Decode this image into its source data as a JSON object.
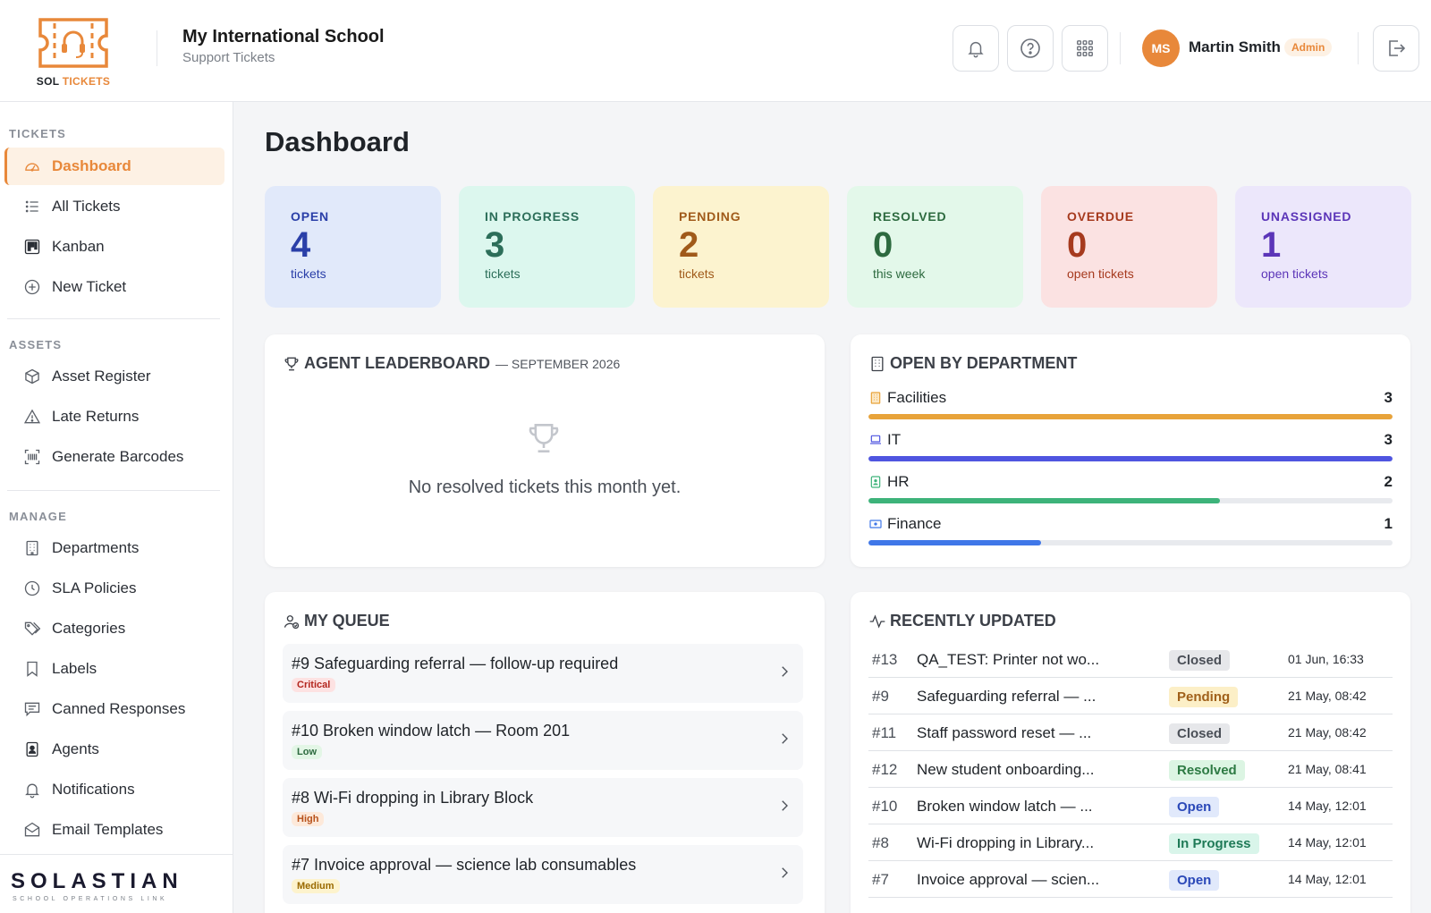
{
  "header": {
    "logo_brand": "SOL",
    "logo_accent": "TICKETS",
    "school_name": "My International School",
    "school_sub": "Support Tickets",
    "user_initials": "MS",
    "user_name": "Martin Smith",
    "user_role": "Admin",
    "icons": [
      "bell-icon",
      "help-icon",
      "apps-grid-icon",
      "logout-icon"
    ]
  },
  "sidebar": {
    "sections": [
      {
        "label": "TICKETS",
        "items": [
          {
            "label": "Dashboard",
            "icon": "gauge-icon",
            "active": true
          },
          {
            "label": "All Tickets",
            "icon": "list-icon"
          },
          {
            "label": "Kanban",
            "icon": "kanban-icon"
          },
          {
            "label": "New Ticket",
            "icon": "plus-circle-icon"
          }
        ]
      },
      {
        "label": "ASSETS",
        "items": [
          {
            "label": "Asset Register",
            "icon": "box-icon"
          },
          {
            "label": "Late Returns",
            "icon": "warning-icon"
          },
          {
            "label": "Generate Barcodes",
            "icon": "barcode-icon"
          }
        ]
      },
      {
        "label": "MANAGE",
        "items": [
          {
            "label": "Departments",
            "icon": "building-icon"
          },
          {
            "label": "SLA Policies",
            "icon": "clock-icon"
          },
          {
            "label": "Categories",
            "icon": "tags-icon"
          },
          {
            "label": "Labels",
            "icon": "bookmark-icon"
          },
          {
            "label": "Canned Responses",
            "icon": "chat-icon"
          },
          {
            "label": "Agents",
            "icon": "badge-icon"
          },
          {
            "label": "Notifications",
            "icon": "bell-icon"
          },
          {
            "label": "Email Templates",
            "icon": "envelope-icon"
          }
        ]
      }
    ],
    "footer_brand": "SOLASTIAN",
    "footer_sub": "SCHOOL OPERATIONS LINK"
  },
  "main": {
    "title": "Dashboard",
    "stats": [
      {
        "label": "OPEN",
        "value": "4",
        "sub": "tickets",
        "bg": "#e1e9fa",
        "color": "#2a3fa8"
      },
      {
        "label": "IN PROGRESS",
        "value": "3",
        "sub": "tickets",
        "bg": "#dcf7ee",
        "color": "#2c6e59"
      },
      {
        "label": "PENDING",
        "value": "2",
        "sub": "tickets",
        "bg": "#fcf3cf",
        "color": "#a05a1a"
      },
      {
        "label": "RESOLVED",
        "value": "0",
        "sub": "this week",
        "bg": "#e3f8ea",
        "color": "#2d6a3f"
      },
      {
        "label": "OVERDUE",
        "value": "0",
        "sub": "open tickets",
        "bg": "#fbe2e2",
        "color": "#a63a1e"
      },
      {
        "label": "UNASSIGNED",
        "value": "1",
        "sub": "open tickets",
        "bg": "#ece7fb",
        "color": "#5b35b8"
      }
    ],
    "leaderboard": {
      "title": "AGENT LEADERBOARD",
      "period": "— SEPTEMBER 2026",
      "empty": "No resolved tickets this month yet."
    },
    "departments": {
      "title": "OPEN BY DEPARTMENT",
      "items": [
        {
          "name": "Facilities",
          "count": 3,
          "fraction": 1.0,
          "color": "#e8a33a",
          "icon": "building-icon"
        },
        {
          "name": "IT",
          "count": 3,
          "fraction": 1.0,
          "color": "#4f55e0",
          "icon": "laptop-icon"
        },
        {
          "name": "HR",
          "count": 2,
          "fraction": 0.67,
          "color": "#3db37a",
          "icon": "id-badge-icon"
        },
        {
          "name": "Finance",
          "count": 1,
          "fraction": 0.33,
          "color": "#3f77e8",
          "icon": "cash-icon"
        }
      ]
    },
    "queue": {
      "title": "MY QUEUE",
      "items": [
        {
          "title": "#9 Safeguarding referral — follow-up required",
          "priority": "Critical",
          "pbg": "#fde2e2",
          "pcolor": "#b3261e"
        },
        {
          "title": "#10 Broken window latch — Room 201",
          "priority": "Low",
          "pbg": "#e3f6e6",
          "pcolor": "#2d6a3f"
        },
        {
          "title": "#8 Wi-Fi dropping in Library Block",
          "priority": "High",
          "pbg": "#fde9da",
          "pcolor": "#b8521b"
        },
        {
          "title": "#7 Invoice approval — science lab consumables",
          "priority": "Medium",
          "pbg": "#fdf3cd",
          "pcolor": "#9a6a00"
        }
      ]
    },
    "recent": {
      "title": "RECENTLY UPDATED",
      "rows": [
        {
          "num": "#13",
          "title": "QA_TEST: Printer not wo...",
          "status": "Closed",
          "bg": "#e6e7ea",
          "color": "#4a4f57",
          "date": "01 Jun, 16:33"
        },
        {
          "num": "#9",
          "title": "Safeguarding referral — ...",
          "status": "Pending",
          "bg": "#fcefc7",
          "color": "#a0601a",
          "date": "21 May, 08:42"
        },
        {
          "num": "#11",
          "title": "Staff password reset — ...",
          "status": "Closed",
          "bg": "#e6e7ea",
          "color": "#4a4f57",
          "date": "21 May, 08:42"
        },
        {
          "num": "#12",
          "title": "New student onboarding...",
          "status": "Resolved",
          "bg": "#dcf5e3",
          "color": "#2d7a43",
          "date": "21 May, 08:41"
        },
        {
          "num": "#10",
          "title": "Broken window latch — ...",
          "status": "Open",
          "bg": "#e1e9fb",
          "color": "#2a48b8",
          "date": "14 May, 12:01"
        },
        {
          "num": "#8",
          "title": "Wi-Fi dropping in Library...",
          "status": "In Progress",
          "bg": "#d9f5ea",
          "color": "#1f7a57",
          "date": "14 May, 12:01"
        },
        {
          "num": "#7",
          "title": "Invoice approval — scien...",
          "status": "Open",
          "bg": "#e1e9fb",
          "color": "#2a48b8",
          "date": "14 May, 12:01"
        }
      ]
    }
  }
}
